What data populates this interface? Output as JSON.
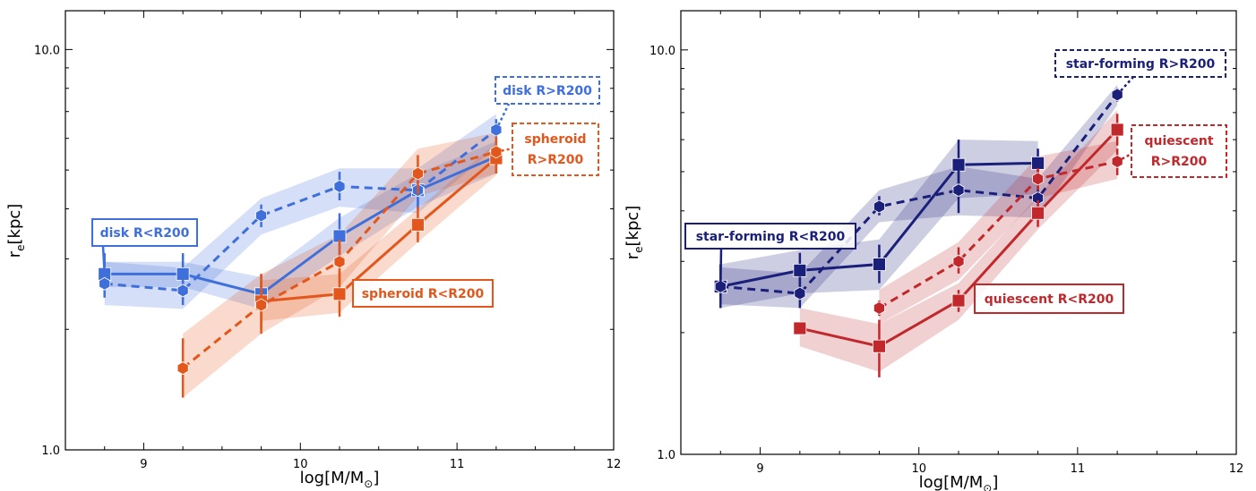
{
  "chart_data": [
    {
      "type": "line",
      "xlabel": "log[M/M⊙]",
      "ylabel": "re[kpc]",
      "xlim": [
        8.5,
        12
      ],
      "ylim": [
        1.0,
        12.5
      ],
      "yscale": "log",
      "x_ticks": [
        "9",
        "10",
        "11",
        "12"
      ],
      "y_ticks": [
        "1.0",
        "10.0"
      ],
      "grid": false,
      "series": [
        {
          "name": "disk R<R200",
          "label_lines": [
            "disk R<R200"
          ],
          "color": "#3f6fdb",
          "linestyle": "solid",
          "marker": "square",
          "x": [
            8.75,
            9.25,
            9.75,
            10.25,
            10.75,
            11.25
          ],
          "y": [
            2.75,
            2.75,
            2.45,
            3.42,
            4.45,
            5.4
          ],
          "y_err_low": [
            2.45,
            2.45,
            2.2,
            3.0,
            4.0,
            4.9
          ],
          "y_err_high": [
            3.1,
            3.1,
            2.75,
            3.9,
            5.0,
            5.9
          ],
          "band_low": [
            2.55,
            2.55,
            2.25,
            3.05,
            4.05,
            4.9
          ],
          "band_high": [
            2.95,
            2.95,
            2.7,
            3.8,
            4.9,
            5.9
          ],
          "label_position": "left"
        },
        {
          "name": "disk R>R200",
          "label_lines": [
            "disk R>R200"
          ],
          "color": "#3f6fdb",
          "linestyle": "dashed",
          "marker": "hexagon",
          "x": [
            8.75,
            9.25,
            9.75,
            10.25,
            10.75,
            11.25
          ],
          "y": [
            2.6,
            2.5,
            3.85,
            4.55,
            4.45,
            6.3
          ],
          "y_err_low": [
            2.4,
            2.3,
            3.6,
            4.2,
            4.0,
            5.9
          ],
          "y_err_high": [
            2.8,
            2.75,
            4.1,
            4.95,
            4.95,
            6.7
          ],
          "band_low": [
            2.3,
            2.25,
            3.45,
            4.05,
            3.9,
            5.7
          ],
          "band_high": [
            2.95,
            2.85,
            4.25,
            5.05,
            5.05,
            6.9
          ],
          "label_position": "upper-right"
        },
        {
          "name": "spheroid R<R200",
          "label_lines": [
            "spheroid R<R200"
          ],
          "color": "#e3571c",
          "linestyle": "solid",
          "marker": "square",
          "x": [
            9.75,
            10.25,
            10.75,
            11.25
          ],
          "y": [
            2.35,
            2.45,
            3.65,
            5.35
          ],
          "y_err_low": [
            2.0,
            2.15,
            3.3,
            4.9
          ],
          "y_err_high": [
            2.75,
            2.8,
            4.05,
            5.8
          ],
          "band_low": [
            2.1,
            2.2,
            3.3,
            4.85
          ],
          "band_high": [
            2.65,
            2.75,
            4.0,
            5.85
          ],
          "label_position": "center-right"
        },
        {
          "name": "spheroid R>R200",
          "label_lines": [
            "spheroid",
            "R>R200"
          ],
          "color": "#e3571c",
          "linestyle": "dashed",
          "marker": "hexagon",
          "x": [
            9.25,
            9.75,
            10.25,
            10.75,
            11.25
          ],
          "y": [
            1.6,
            2.3,
            2.95,
            4.9,
            5.55
          ],
          "y_err_low": [
            1.35,
            1.95,
            2.6,
            4.35,
            5.1
          ],
          "y_err_high": [
            1.9,
            2.65,
            3.35,
            5.45,
            6.05
          ],
          "band_low": [
            1.35,
            1.95,
            2.55,
            4.3,
            4.9
          ],
          "band_high": [
            1.95,
            2.75,
            3.45,
            5.65,
            6.2
          ],
          "label_position": "right"
        }
      ],
      "labels": {
        "series_0": "disk R<R200",
        "series_1": "disk R>R200",
        "series_2": "spheroid R<R200",
        "series_3_line1": "spheroid",
        "series_3_line2": "R>R200"
      }
    },
    {
      "type": "line",
      "xlabel": "log[M/M⊙]",
      "ylabel": "re[kpc]",
      "xlim": [
        8.5,
        12
      ],
      "ylim": [
        1.0,
        12.5
      ],
      "yscale": "log",
      "x_ticks": [
        "9",
        "10",
        "11",
        "12"
      ],
      "y_ticks": [
        "1.0",
        "10.0"
      ],
      "grid": false,
      "series": [
        {
          "name": "star-forming R<R200",
          "label_lines": [
            "star-forming R<R200"
          ],
          "color": "#1a1f7a",
          "linestyle": "solid",
          "marker": "square",
          "x": [
            8.75,
            9.25,
            9.75,
            10.25,
            10.75
          ],
          "y": [
            2.6,
            2.85,
            2.95,
            5.2,
            5.25
          ],
          "y_err_low": [
            2.3,
            2.6,
            2.65,
            4.45,
            4.75
          ],
          "y_err_high": [
            2.95,
            3.15,
            3.3,
            6.0,
            5.7
          ],
          "band_low": [
            2.3,
            2.5,
            2.55,
            4.3,
            4.4
          ],
          "band_high": [
            2.95,
            3.2,
            3.4,
            6.0,
            5.95
          ],
          "label_position": "left"
        },
        {
          "name": "star-forming R>R200",
          "label_lines": [
            "star-forming R>R200"
          ],
          "color": "#1a1f7a",
          "linestyle": "dashed",
          "marker": "hexagon",
          "x": [
            8.75,
            9.25,
            9.75,
            10.25,
            10.75,
            11.25
          ],
          "y": [
            2.6,
            2.5,
            4.1,
            4.5,
            4.3,
            7.75
          ],
          "y_err_low": [
            2.45,
            2.3,
            3.9,
            3.95,
            4.0,
            7.45
          ],
          "y_err_high": [
            2.75,
            2.75,
            4.35,
            5.05,
            4.6,
            8.05
          ],
          "band_low": [
            2.35,
            2.3,
            3.75,
            3.9,
            3.85,
            7.3
          ],
          "band_high": [
            2.9,
            2.8,
            4.5,
            5.15,
            4.8,
            8.2
          ],
          "label_position": "upper-right"
        },
        {
          "name": "quiescent R<R200",
          "label_lines": [
            "quiescent R<R200"
          ],
          "color": "#c0282c",
          "linestyle": "solid",
          "marker": "square",
          "x": [
            9.25,
            9.75,
            10.25,
            10.75,
            11.25
          ],
          "y": [
            2.05,
            1.85,
            2.4,
            3.95,
            6.35
          ],
          "y_err_low": [
            2.0,
            1.55,
            2.25,
            3.65,
            5.8
          ],
          "y_err_high": [
            2.1,
            2.15,
            2.55,
            4.25,
            6.95
          ],
          "band_low": [
            1.85,
            1.6,
            2.15,
            3.6,
            5.65
          ],
          "band_high": [
            2.3,
            2.1,
            2.65,
            4.35,
            7.1
          ],
          "label_position": "center-right"
        },
        {
          "name": "quiescent R>R200",
          "label_lines": [
            "quiescent",
            "R>R200"
          ],
          "color": "#c0282c",
          "linestyle": "dashed",
          "marker": "hexagon",
          "x": [
            9.75,
            10.25,
            10.75,
            11.25
          ],
          "y": [
            2.3,
            3.0,
            4.8,
            5.3
          ],
          "y_err_low": [
            2.2,
            2.8,
            4.5,
            4.9
          ],
          "y_err_high": [
            2.4,
            3.25,
            5.1,
            5.7
          ],
          "band_low": [
            2.1,
            2.7,
            4.3,
            4.8
          ],
          "band_high": [
            2.55,
            3.35,
            5.45,
            5.95
          ],
          "label_position": "right"
        }
      ],
      "labels": {
        "series_0": "star-forming R<R200",
        "series_1": "star-forming R>R200",
        "series_2": "quiescent R<R200",
        "series_3_line1": "quiescent",
        "series_3_line2": "R>R200"
      }
    }
  ],
  "panels": [
    {
      "xlabel_main": "log[M/M",
      "xlabel_sub": "⊙",
      "xlabel_tail": "]",
      "ylabel_main": "r",
      "ylabel_sub": "e",
      "ylabel_tail": "[kpc]"
    },
    {
      "xlabel_main": "log[M/M",
      "xlabel_sub": "⊙",
      "xlabel_tail": "]",
      "ylabel_main": "r",
      "ylabel_sub": "e",
      "ylabel_tail": "[kpc]"
    }
  ]
}
